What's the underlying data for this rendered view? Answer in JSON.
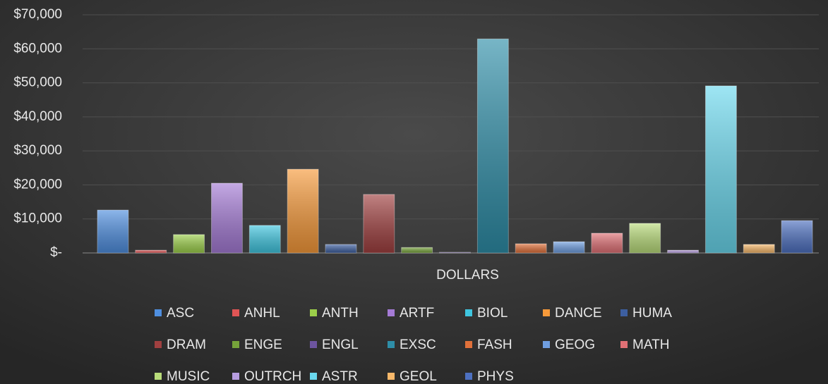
{
  "chart_data": {
    "type": "bar",
    "categories": [
      "DOLLARS"
    ],
    "series": [
      {
        "name": "ASC",
        "color": "#4f8fe0",
        "values": [
          12600
        ]
      },
      {
        "name": "ANHL",
        "color": "#e05555",
        "values": [
          800
        ]
      },
      {
        "name": "ANTH",
        "color": "#9ccf4a",
        "values": [
          5400
        ]
      },
      {
        "name": "ARTF",
        "color": "#a57bd6",
        "values": [
          20500
        ]
      },
      {
        "name": "BIOL",
        "color": "#3fc6e0",
        "values": [
          8100
        ]
      },
      {
        "name": "DANCE",
        "color": "#f79a3a",
        "values": [
          24600
        ]
      },
      {
        "name": "HUMA",
        "color": "#3d5fa0",
        "values": [
          2500
        ]
      },
      {
        "name": "DRAM",
        "color": "#a04040",
        "values": [
          17200
        ]
      },
      {
        "name": "ENGE",
        "color": "#76a33a",
        "values": [
          1600
        ]
      },
      {
        "name": "ENGL",
        "color": "#6d55a0",
        "values": [
          200
        ]
      },
      {
        "name": "EXSC",
        "color": "#2e8ea8",
        "values": [
          62900
        ]
      },
      {
        "name": "FASH",
        "color": "#e0703a",
        "values": [
          2700
        ]
      },
      {
        "name": "GEOG",
        "color": "#6f9ee0",
        "values": [
          3300
        ]
      },
      {
        "name": "MATH",
        "color": "#e07075",
        "values": [
          5800
        ]
      },
      {
        "name": "MUSIC",
        "color": "#b9dc7a",
        "values": [
          8700
        ]
      },
      {
        "name": "OUTRCH",
        "color": "#b79de0",
        "values": [
          800
        ]
      },
      {
        "name": "ASTR",
        "color": "#6ad8ee",
        "values": [
          49100
        ]
      },
      {
        "name": "GEOL",
        "color": "#f7b86a",
        "values": [
          2500
        ]
      },
      {
        "name": "PHYS",
        "color": "#4d70c0",
        "values": [
          9500
        ]
      }
    ],
    "ylim": [
      0,
      70000
    ],
    "yticks": [
      {
        "value": 0,
        "label": "$-"
      },
      {
        "value": 10000,
        "label": "$10,000"
      },
      {
        "value": 20000,
        "label": "$20,000"
      },
      {
        "value": 30000,
        "label": "$30,000"
      },
      {
        "value": 40000,
        "label": "$40,000"
      },
      {
        "value": 50000,
        "label": "$50,000"
      },
      {
        "value": 60000,
        "label": "$60,000"
      },
      {
        "value": 70000,
        "label": "$70,000"
      }
    ],
    "grid": true,
    "legend": "bottom"
  }
}
